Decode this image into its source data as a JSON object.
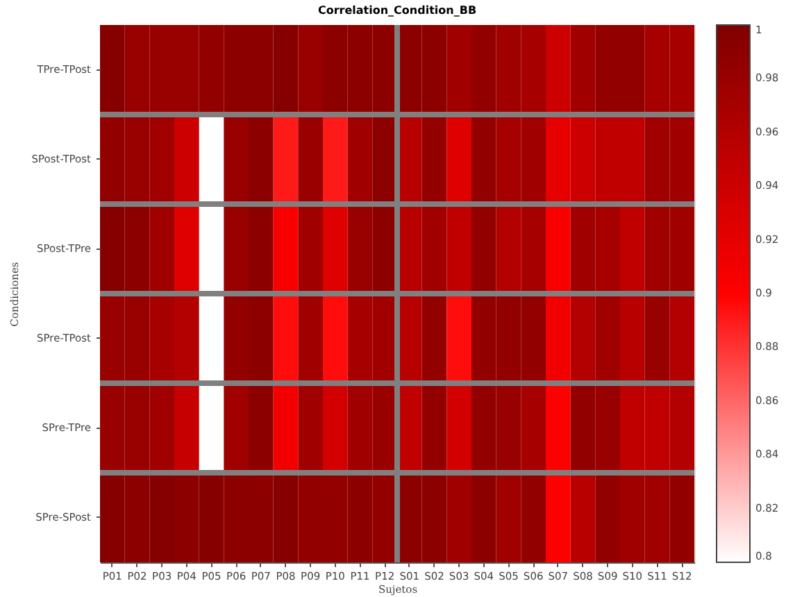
{
  "chart_data": {
    "type": "heatmap",
    "title": "Correlation_Condition_BB",
    "xlabel": "Sujetos",
    "ylabel": "Condiciones",
    "categories": [
      "P01",
      "P02",
      "P03",
      "P04",
      "P05",
      "P06",
      "P07",
      "P08",
      "P09",
      "P10",
      "P11",
      "P12",
      "S01",
      "S02",
      "S03",
      "S04",
      "S05",
      "S06",
      "S07",
      "S08",
      "S09",
      "S10",
      "S11",
      "S12"
    ],
    "y_categories": [
      "TPre-TPost",
      "SPost-TPost",
      "SPost-TPre",
      "SPre-TPost",
      "SPre-TPre",
      "SPre-SPost"
    ],
    "cells": [
      [
        0.995,
        0.98,
        0.98,
        0.98,
        0.985,
        0.99,
        0.99,
        0.995,
        0.98,
        0.99,
        0.99,
        0.99,
        0.99,
        0.99,
        0.975,
        0.985,
        0.975,
        0.97,
        0.94,
        0.975,
        0.985,
        0.985,
        0.97,
        0.97
      ],
      [
        0.985,
        0.98,
        0.975,
        0.94,
        null,
        0.98,
        0.99,
        0.89,
        0.98,
        0.89,
        0.975,
        0.99,
        0.955,
        0.985,
        0.925,
        0.985,
        0.97,
        0.975,
        0.92,
        0.94,
        0.95,
        0.95,
        0.975,
        0.975
      ],
      [
        0.995,
        0.99,
        0.975,
        0.925,
        null,
        0.98,
        0.99,
        0.905,
        0.975,
        0.925,
        0.98,
        0.99,
        0.955,
        0.975,
        0.95,
        0.985,
        0.96,
        0.97,
        0.905,
        0.975,
        0.97,
        0.95,
        0.975,
        0.975
      ],
      [
        0.98,
        0.98,
        0.97,
        0.96,
        null,
        0.985,
        0.99,
        0.895,
        0.975,
        0.895,
        0.97,
        0.975,
        0.955,
        0.985,
        0.895,
        0.985,
        0.985,
        0.985,
        0.91,
        0.96,
        0.975,
        0.955,
        0.98,
        0.96
      ],
      [
        0.98,
        0.98,
        0.975,
        0.945,
        null,
        0.975,
        0.99,
        0.91,
        0.975,
        0.935,
        0.975,
        0.98,
        0.95,
        0.985,
        0.935,
        0.985,
        0.98,
        0.97,
        0.9,
        0.985,
        0.98,
        0.95,
        0.95,
        0.96
      ],
      [
        0.995,
        0.99,
        0.995,
        0.99,
        0.995,
        0.99,
        0.99,
        0.995,
        0.985,
        0.985,
        0.99,
        0.985,
        0.99,
        0.99,
        0.975,
        0.99,
        0.975,
        0.985,
        0.9,
        0.955,
        0.985,
        0.975,
        0.975,
        0.985
      ]
    ],
    "clim": [
      0.8,
      1
    ],
    "cticks": [
      0.8,
      0.82,
      0.84,
      0.86,
      0.88,
      0.9,
      0.92,
      0.94,
      0.96,
      0.98,
      1
    ],
    "grid": "y"
  }
}
